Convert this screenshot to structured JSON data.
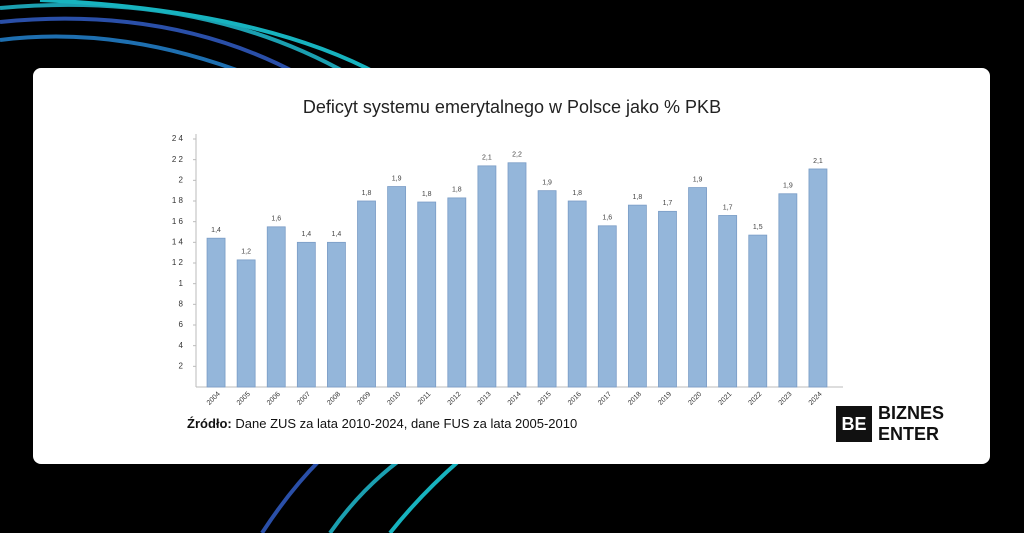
{
  "chart_data": {
    "type": "bar",
    "title": "Deficyt systemu emerytalnego w Polsce jako % PKB",
    "categories": [
      "2004",
      "2005",
      "2006",
      "2007",
      "2008",
      "2009",
      "2010",
      "2011",
      "2012",
      "2013",
      "2014",
      "2015",
      "2016",
      "2017",
      "2018",
      "2019",
      "2020",
      "2021",
      "2022",
      "2023",
      "2024"
    ],
    "values": [
      1.44,
      1.23,
      1.55,
      1.4,
      1.4,
      1.8,
      1.94,
      1.79,
      1.83,
      2.14,
      2.17,
      1.9,
      1.8,
      1.56,
      1.76,
      1.7,
      1.93,
      1.66,
      1.47,
      1.87,
      2.11
    ],
    "value_labels": [
      "1,4",
      "1,2",
      "1,6",
      "1,4",
      "1,4",
      "1,8",
      "1,9",
      "1,8",
      "1,8",
      "2,1",
      "2,2",
      "1,9",
      "1,8",
      "1,6",
      "1,8",
      "1,7",
      "1,9",
      "1,7",
      "1,5",
      "1,9",
      "2,1"
    ],
    "color": "#94b6da",
    "ylim": [
      0,
      2.4
    ],
    "yticks": [
      {
        "value": 0.2,
        "label": "2"
      },
      {
        "value": 0.4,
        "label": "4"
      },
      {
        "value": 0.6,
        "label": "6"
      },
      {
        "value": 0.8,
        "label": "8"
      },
      1,
      {
        "value": 1.2,
        "label": "1 2"
      },
      {
        "value": 1.4,
        "label": "1 4"
      },
      {
        "value": 1.6,
        "label": "1 6"
      },
      {
        "value": 1.8,
        "label": "1 8"
      },
      2,
      {
        "value": 2.2,
        "label": "2 2"
      },
      {
        "value": 2.4,
        "label": "2 4"
      }
    ],
    "grid": false
  },
  "source": {
    "label": "Źródło:",
    "text": " Dane ZUS za lata 2010-2024, dane FUS za lata 2005-2010"
  },
  "logo": {
    "mark": "BE",
    "line1": "BIZNES",
    "line2": "ENTER"
  }
}
